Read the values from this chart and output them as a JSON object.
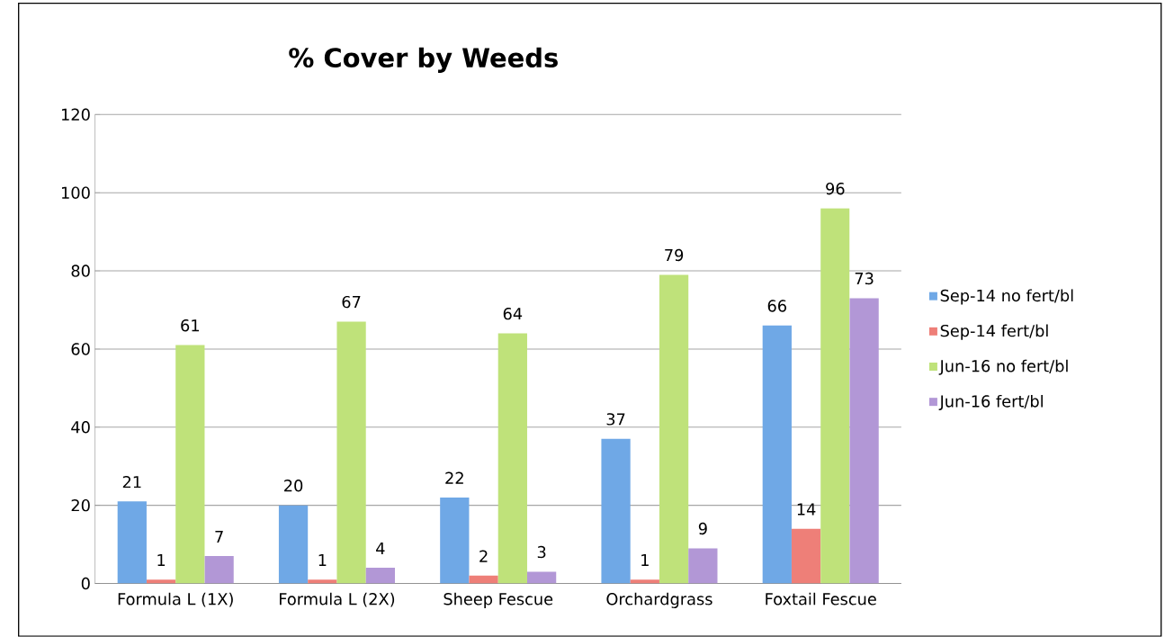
{
  "chart_data": {
    "type": "bar",
    "title": "% Cover by Weeds",
    "categories": [
      "Formula L (1X)",
      "Formula L (2X)",
      "Sheep Fescue",
      "Orchardgrass",
      "Foxtail Fescue"
    ],
    "series": [
      {
        "name": "Sep-14 no fert/bl",
        "color": "#6fa8e6",
        "values": [
          21,
          20,
          22,
          37,
          66
        ]
      },
      {
        "name": "Sep-14 fert/bl",
        "color": "#ee7f78",
        "values": [
          1,
          1,
          2,
          1,
          14
        ]
      },
      {
        "name": "Jun-16 no fert/bl",
        "color": "#bfe27a",
        "values": [
          61,
          67,
          64,
          79,
          96
        ]
      },
      {
        "name": "Jun-16 fert/bl",
        "color": "#b297d6",
        "values": [
          7,
          4,
          3,
          9,
          73
        ]
      }
    ],
    "ylim": [
      0,
      120
    ],
    "yticks": [
      0,
      20,
      40,
      60,
      80,
      100,
      120
    ],
    "grid": "y",
    "legend": "right",
    "data_labels": true
  }
}
